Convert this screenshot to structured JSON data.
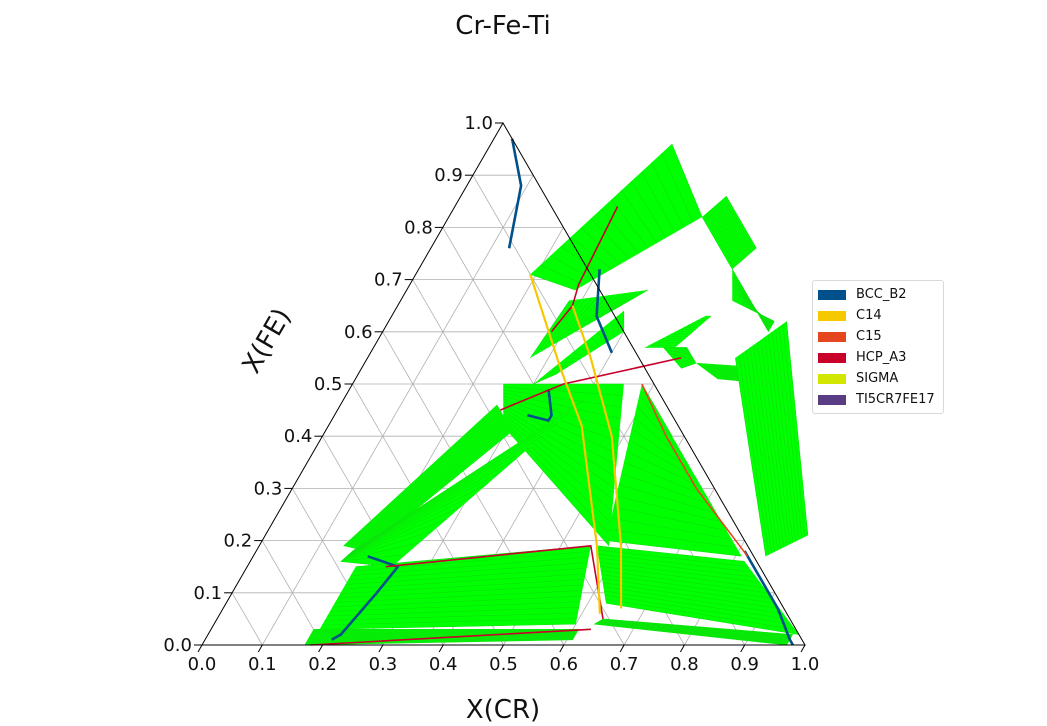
{
  "chart_data": {
    "type": "ternary",
    "title": "Cr-Fe-Ti",
    "xlabel": "X(CR)",
    "ylabel": "X(FE)",
    "xlim": [
      0,
      1
    ],
    "ylim": [
      0,
      1
    ],
    "x_ticks": [
      "0.0",
      "0.1",
      "0.2",
      "0.3",
      "0.4",
      "0.5",
      "0.6",
      "0.7",
      "0.8",
      "0.9",
      "1.0"
    ],
    "y_ticks": [
      "0.0",
      "0.1",
      "0.2",
      "0.3",
      "0.4",
      "0.5",
      "0.6",
      "0.7",
      "0.8",
      "0.9",
      "1.0"
    ],
    "grid": true,
    "legend_position": "right",
    "legend": [
      {
        "name": "BCC_B2",
        "color": "#00508c"
      },
      {
        "name": "C14",
        "color": "#f5c800"
      },
      {
        "name": "C15",
        "color": "#e6461e"
      },
      {
        "name": "HCP_A3",
        "color": "#c8002a"
      },
      {
        "name": "SIGMA",
        "color": "#d2e600"
      },
      {
        "name": "TI5CR7FE17",
        "color": "#5a3c82"
      }
    ],
    "tie_line_color": "#00ff00",
    "tie_line_regions": [
      {
        "pts": [
          [
            0.19,
            0.71
          ],
          [
            0.3,
            0.96
          ],
          [
            0.42,
            0.82
          ],
          [
            0.28,
            0.68
          ]
        ]
      },
      {
        "pts": [
          [
            0.42,
            0.82
          ],
          [
            0.44,
            0.86
          ],
          [
            0.54,
            0.76
          ],
          [
            0.52,
            0.72
          ]
        ]
      },
      {
        "pts": [
          [
            0.52,
            0.72
          ],
          [
            0.55,
            0.66
          ],
          [
            0.64,
            0.62
          ],
          [
            0.64,
            0.6
          ]
        ]
      },
      {
        "pts": [
          [
            0.53,
            0.63
          ],
          [
            0.5,
            0.57
          ],
          [
            0.45,
            0.57
          ],
          [
            0.52,
            0.63
          ]
        ]
      },
      {
        "pts": [
          [
            0.52,
            0.57
          ],
          [
            0.55,
            0.54
          ],
          [
            0.53,
            0.53
          ],
          [
            0.48,
            0.57
          ]
        ]
      },
      {
        "pts": [
          [
            0.55,
            0.54
          ],
          [
            0.6,
            0.51
          ],
          [
            0.7,
            0.5
          ],
          [
            0.68,
            0.53
          ]
        ]
      },
      {
        "pts": [
          [
            0.36,
            0.64
          ],
          [
            0.27,
            0.55
          ],
          [
            0.28,
            0.66
          ],
          [
            0.4,
            0.68
          ]
        ]
      },
      {
        "pts": [
          [
            0.25,
            0.5
          ],
          [
            0.29,
            0.42
          ],
          [
            0.58,
            0.19
          ],
          [
            0.45,
            0.5
          ]
        ]
      },
      {
        "pts": [
          [
            0.3,
            0.5
          ],
          [
            0.38,
            0.64
          ],
          [
            0.4,
            0.6
          ],
          [
            0.33,
            0.52
          ]
        ]
      },
      {
        "pts": [
          [
            0.31,
            0.41
          ],
          [
            0.26,
            0.46
          ],
          [
            0.14,
            0.19
          ],
          [
            0.18,
            0.18
          ]
        ]
      },
      {
        "pts": [
          [
            0.16,
            0.18
          ],
          [
            0.15,
            0.16
          ],
          [
            0.24,
            0.15
          ],
          [
            0.4,
            0.47
          ]
        ]
      },
      {
        "pts": [
          [
            0.18,
            0.15
          ],
          [
            0.18,
            0.03
          ],
          [
            0.6,
            0.04
          ],
          [
            0.55,
            0.19
          ]
        ]
      },
      {
        "pts": [
          [
            0.17,
            0.03
          ],
          [
            0.17,
            0.0
          ],
          [
            0.61,
            0.01
          ],
          [
            0.61,
            0.03
          ]
        ]
      },
      {
        "pts": [
          [
            0.48,
            0.5
          ],
          [
            0.57,
            0.2
          ],
          [
            0.81,
            0.17
          ],
          [
            0.58,
            0.4
          ]
        ]
      },
      {
        "pts": [
          [
            0.56,
            0.19
          ],
          [
            0.63,
            0.08
          ],
          [
            0.98,
            0.02
          ],
          [
            0.82,
            0.16
          ]
        ]
      },
      {
        "pts": [
          [
            0.64,
            0.05
          ],
          [
            0.63,
            0.04
          ],
          [
            0.97,
            0.0
          ],
          [
            0.97,
            0.02
          ]
        ]
      },
      {
        "pts": [
          [
            0.66,
            0.62
          ],
          [
            0.61,
            0.55
          ],
          [
            0.85,
            0.17
          ],
          [
            0.9,
            0.21
          ]
        ]
      }
    ],
    "phase_boundaries": [
      {
        "phase": "BCC_B2",
        "pts": [
          [
            0.03,
            0.97
          ],
          [
            0.09,
            0.88
          ],
          [
            0.13,
            0.76
          ]
        ]
      },
      {
        "phase": "BCC_B2",
        "pts": [
          [
            0.3,
            0.72
          ],
          [
            0.34,
            0.63
          ],
          [
            0.4,
            0.56
          ]
        ]
      },
      {
        "phase": "BCC_B2",
        "pts": [
          [
            0.33,
            0.49
          ],
          [
            0.36,
            0.44
          ],
          [
            0.36,
            0.43
          ],
          [
            0.32,
            0.44
          ]
        ]
      },
      {
        "phase": "BCC_B2",
        "pts": [
          [
            0.19,
            0.17
          ],
          [
            0.25,
            0.15
          ],
          [
            0.24,
            0.1
          ],
          [
            0.22,
            0.02
          ],
          [
            0.21,
            0.01
          ]
        ]
      },
      {
        "phase": "BCC_B2",
        "pts": [
          [
            0.81,
            0.18
          ],
          [
            0.92,
            0.07
          ],
          [
            0.97,
            0.01
          ],
          [
            0.98,
            0.0
          ]
        ]
      },
      {
        "phase": "HCP_A3",
        "pts": [
          [
            0.27,
            0.84
          ],
          [
            0.28,
            0.69
          ],
          [
            0.29,
            0.65
          ],
          [
            0.28,
            0.6
          ]
        ]
      },
      {
        "phase": "HCP_A3",
        "pts": [
          [
            0.52,
            0.55
          ],
          [
            0.35,
            0.5
          ],
          [
            0.27,
            0.45
          ]
        ]
      },
      {
        "phase": "HCP_A3",
        "pts": [
          [
            0.23,
            0.15
          ],
          [
            0.55,
            0.19
          ],
          [
            0.64,
            0.05
          ]
        ]
      },
      {
        "phase": "HCP_A3",
        "pts": [
          [
            0.63,
            0.03
          ],
          [
            0.18,
            0.0
          ]
        ]
      },
      {
        "phase": "C14",
        "pts": [
          [
            0.19,
            0.71
          ],
          [
            0.33,
            0.53
          ],
          [
            0.42,
            0.42
          ],
          [
            0.56,
            0.19
          ],
          [
            0.63,
            0.06
          ]
        ]
      },
      {
        "phase": "C14",
        "pts": [
          [
            0.29,
            0.65
          ],
          [
            0.37,
            0.55
          ],
          [
            0.48,
            0.4
          ],
          [
            0.6,
            0.19
          ],
          [
            0.66,
            0.07
          ]
        ]
      },
      {
        "phase": "C15",
        "pts": [
          [
            0.48,
            0.5
          ],
          [
            0.57,
            0.4
          ],
          [
            0.67,
            0.3
          ],
          [
            0.82,
            0.17
          ]
        ]
      }
    ]
  }
}
